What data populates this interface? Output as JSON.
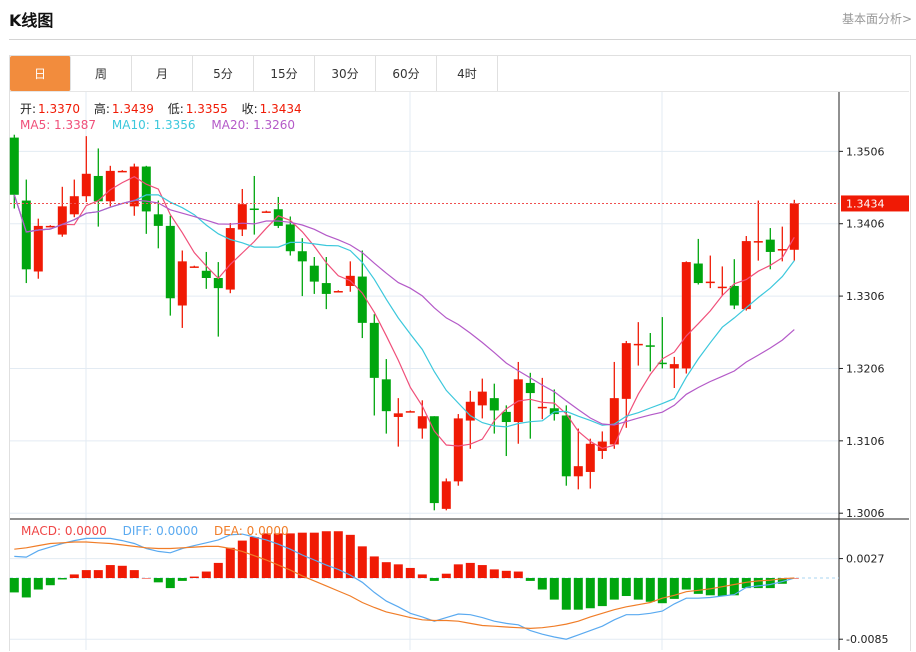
{
  "header": {
    "title": "K线图",
    "link": "基本面分析>"
  },
  "tabs": [
    {
      "label": "日",
      "active": true
    },
    {
      "label": "周"
    },
    {
      "label": "月"
    },
    {
      "label": "5分"
    },
    {
      "label": "15分"
    },
    {
      "label": "30分"
    },
    {
      "label": "60分"
    },
    {
      "label": "4时"
    }
  ],
  "ohlc_legend": {
    "open_label": "开:",
    "open": "1.3370",
    "high_label": "高:",
    "high": "1.3439",
    "low_label": "低:",
    "low": "1.3355",
    "close_label": "收:",
    "close": "1.3434"
  },
  "ma_legend": {
    "ma5": "MA5: 1.3387",
    "ma10": "MA10: 1.3356",
    "ma20": "MA20: 1.3260"
  },
  "macd_legend": {
    "macd": "MACD: 0.0000",
    "diff": "DIFF: 0.0000",
    "dea": "DEA: 0.0000"
  },
  "colors": {
    "up": "#f01a05",
    "down": "#00a60e",
    "ma5": "#f0507a",
    "ma10": "#3cc8dc",
    "ma20": "#b45ac8",
    "diff": "#5aaaf0",
    "dea": "#f07d28",
    "active_tab": "#f28c3d"
  },
  "chart_data": {
    "type": "candlestick",
    "price_ticks": [
      "1.3506",
      "1.3406",
      "1.3306",
      "1.3206",
      "1.3106",
      "1.3006"
    ],
    "price_range": [
      1.2998,
      1.3588
    ],
    "current_price": "1.3434",
    "ma_periods": [
      5,
      10,
      20
    ],
    "candles": [
      [
        1.3525,
        1.3529,
        1.3427,
        1.3446
      ],
      [
        1.3438,
        1.3467,
        1.3324,
        1.3343
      ],
      [
        1.334,
        1.3413,
        1.333,
        1.3403
      ],
      [
        1.3402,
        1.3404,
        1.3401,
        1.3403
      ],
      [
        1.3391,
        1.3457,
        1.3388,
        1.343
      ],
      [
        1.3419,
        1.3467,
        1.3415,
        1.3444
      ],
      [
        1.3444,
        1.3527,
        1.3436,
        1.3475
      ],
      [
        1.3472,
        1.351,
        1.3402,
        1.3437
      ],
      [
        1.3437,
        1.3486,
        1.343,
        1.3479
      ],
      [
        1.3478,
        1.348,
        1.3478,
        1.3479
      ],
      [
        1.343,
        1.3489,
        1.3417,
        1.3485
      ],
      [
        1.3485,
        1.3486,
        1.3392,
        1.3423
      ],
      [
        1.3419,
        1.3438,
        1.3372,
        1.3403
      ],
      [
        1.3403,
        1.3417,
        1.3279,
        1.3303
      ],
      [
        1.3293,
        1.3369,
        1.3262,
        1.3354
      ],
      [
        1.3346,
        1.3348,
        1.3346,
        1.3347
      ],
      [
        1.3341,
        1.3367,
        1.3316,
        1.3331
      ],
      [
        1.3331,
        1.3353,
        1.325,
        1.3317
      ],
      [
        1.3315,
        1.3407,
        1.331,
        1.34
      ],
      [
        1.3398,
        1.3454,
        1.3389,
        1.3433
      ],
      [
        1.3427,
        1.3472,
        1.3391,
        1.3426
      ],
      [
        1.3422,
        1.3424,
        1.3422,
        1.3423
      ],
      [
        1.3426,
        1.3443,
        1.34,
        1.3403
      ],
      [
        1.3405,
        1.3416,
        1.3362,
        1.3368
      ],
      [
        1.3368,
        1.3386,
        1.3306,
        1.3354
      ],
      [
        1.3348,
        1.336,
        1.3309,
        1.3326
      ],
      [
        1.3324,
        1.336,
        1.3288,
        1.3309
      ],
      [
        1.3312,
        1.3314,
        1.3312,
        1.3313
      ],
      [
        1.332,
        1.3354,
        1.3312,
        1.3334
      ],
      [
        1.3333,
        1.3369,
        1.3248,
        1.3269
      ],
      [
        1.3269,
        1.3281,
        1.3141,
        1.3193
      ],
      [
        1.3191,
        1.3219,
        1.3116,
        1.3147
      ],
      [
        1.3139,
        1.3165,
        1.3098,
        1.3144
      ],
      [
        1.3146,
        1.3148,
        1.3146,
        1.3147
      ],
      [
        1.3123,
        1.3162,
        1.3109,
        1.314
      ],
      [
        1.314,
        1.314,
        1.301,
        1.302
      ],
      [
        1.3012,
        1.3054,
        1.301,
        1.305
      ],
      [
        1.305,
        1.3143,
        1.3044,
        1.3137
      ],
      [
        1.3134,
        1.3175,
        1.3095,
        1.316
      ],
      [
        1.3155,
        1.3192,
        1.3137,
        1.3174
      ],
      [
        1.3165,
        1.3185,
        1.3116,
        1.3148
      ],
      [
        1.3146,
        1.3155,
        1.3085,
        1.3132
      ],
      [
        1.3132,
        1.3215,
        1.3102,
        1.3191
      ],
      [
        1.3186,
        1.32,
        1.3109,
        1.3172
      ],
      [
        1.3152,
        1.3193,
        1.3136,
        1.3153
      ],
      [
        1.3151,
        1.3177,
        1.3134,
        1.3143
      ],
      [
        1.3141,
        1.3155,
        1.3044,
        1.3057
      ],
      [
        1.3057,
        1.3123,
        1.3039,
        1.3071
      ],
      [
        1.3063,
        1.3109,
        1.304,
        1.3102
      ],
      [
        1.3092,
        1.3119,
        1.3081,
        1.3105
      ],
      [
        1.3101,
        1.3215,
        1.3095,
        1.3165
      ],
      [
        1.3164,
        1.3244,
        1.3124,
        1.3241
      ],
      [
        1.3239,
        1.327,
        1.321,
        1.324
      ],
      [
        1.3238,
        1.3255,
        1.3202,
        1.3237
      ],
      [
        1.3214,
        1.3277,
        1.3206,
        1.3213
      ],
      [
        1.3206,
        1.3222,
        1.3179,
        1.3212
      ],
      [
        1.3206,
        1.3354,
        1.3199,
        1.3353
      ],
      [
        1.3351,
        1.3385,
        1.3322,
        1.3324
      ],
      [
        1.3325,
        1.3362,
        1.3317,
        1.3326
      ],
      [
        1.3318,
        1.3347,
        1.3306,
        1.3319
      ],
      [
        1.332,
        1.3357,
        1.3288,
        1.3293
      ],
      [
        1.3288,
        1.3389,
        1.3286,
        1.3382
      ],
      [
        1.3381,
        1.3438,
        1.3355,
        1.3382
      ],
      [
        1.3384,
        1.34,
        1.3343,
        1.3367
      ],
      [
        1.337,
        1.3402,
        1.3354,
        1.3371
      ],
      [
        1.337,
        1.3439,
        1.3355,
        1.3434
      ]
    ],
    "macd": {
      "ticks": [
        "0.0027",
        "-0.0085"
      ],
      "range": [
        -0.01,
        0.0082
      ],
      "hist": [
        -0.002,
        -0.0027,
        -0.0016,
        -0.001,
        -0.0002,
        0.0005,
        0.0011,
        0.0011,
        0.0018,
        0.0017,
        0.0011,
        0.0,
        -0.0006,
        -0.0014,
        -0.0004,
        0.0002,
        0.0009,
        0.0021,
        0.0042,
        0.0052,
        0.0057,
        0.0062,
        0.0062,
        0.0062,
        0.0063,
        0.0063,
        0.0065,
        0.0065,
        0.006,
        0.0044,
        0.003,
        0.0022,
        0.0019,
        0.0014,
        0.0005,
        -0.0004,
        0.0006,
        0.0019,
        0.0021,
        0.0018,
        0.0012,
        0.001,
        0.0009,
        -0.0004,
        -0.0016,
        -0.003,
        -0.0044,
        -0.0044,
        -0.0042,
        -0.0039,
        -0.003,
        -0.0025,
        -0.003,
        -0.0033,
        -0.0035,
        -0.0029,
        -0.0016,
        -0.0022,
        -0.0024,
        -0.0025,
        -0.0024,
        -0.0014,
        -0.0014,
        -0.0014,
        -0.0008,
        0.0
      ],
      "diff": [
        0.003,
        0.0029,
        0.0038,
        0.0043,
        0.0048,
        0.0052,
        0.0055,
        0.0055,
        0.0055,
        0.0052,
        0.0048,
        0.0041,
        0.0037,
        0.0035,
        0.0041,
        0.0045,
        0.0049,
        0.0053,
        0.006,
        0.0061,
        0.0057,
        0.0053,
        0.0047,
        0.004,
        0.0032,
        0.0025,
        0.0018,
        0.0012,
        0.0004,
        -0.0006,
        -0.002,
        -0.0032,
        -0.004,
        -0.0049,
        -0.0054,
        -0.006,
        -0.0055,
        -0.005,
        -0.0051,
        -0.0055,
        -0.006,
        -0.0063,
        -0.0065,
        -0.0073,
        -0.0078,
        -0.0082,
        -0.0085,
        -0.0079,
        -0.0073,
        -0.0067,
        -0.0058,
        -0.0051,
        -0.0051,
        -0.0049,
        -0.0046,
        -0.0036,
        -0.0028,
        -0.0028,
        -0.0027,
        -0.0025,
        -0.0023,
        -0.0013,
        -0.0011,
        -0.0009,
        -0.0005,
        0.0
      ],
      "dea": [
        0.004,
        0.0042,
        0.0045,
        0.0048,
        0.0049,
        0.005,
        0.005,
        0.0049,
        0.0048,
        0.0046,
        0.0044,
        0.0042,
        0.0041,
        0.0041,
        0.0042,
        0.0043,
        0.0044,
        0.0044,
        0.0041,
        0.0037,
        0.0031,
        0.0025,
        0.0018,
        0.0011,
        0.0003,
        -0.0004,
        -0.0011,
        -0.0018,
        -0.0025,
        -0.0034,
        -0.0041,
        -0.0047,
        -0.0051,
        -0.0055,
        -0.0058,
        -0.0059,
        -0.0059,
        -0.006,
        -0.0063,
        -0.0066,
        -0.0067,
        -0.0068,
        -0.0069,
        -0.007,
        -0.0069,
        -0.0067,
        -0.0064,
        -0.006,
        -0.0054,
        -0.0049,
        -0.0044,
        -0.004,
        -0.0037,
        -0.0034,
        -0.0028,
        -0.0024,
        -0.0019,
        -0.0017,
        -0.0015,
        -0.0012,
        -0.0009,
        -0.0006,
        -0.0004,
        -0.0003,
        -0.0001,
        0.0
      ]
    }
  }
}
